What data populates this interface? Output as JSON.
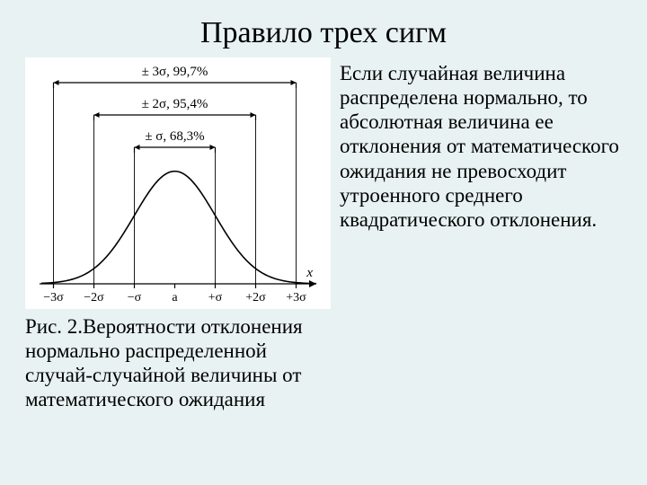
{
  "title": "Правило трех сигм",
  "body_text": "Если случайная величина распределена нормально, то абсолютная величина ее отклонения от математического ожидания не превосходит утроенного среднего квадратического отклонения.",
  "caption": "Рис. 2.Вероятности отклонения нормально распределенной случай-случайной величины от математического ожидания",
  "chart": {
    "type": "bell-curve",
    "background": "#ffffff",
    "stroke": "#000000",
    "stroke_width": 1.6,
    "axis_stroke_width": 1.2,
    "xlim": [
      -3.3,
      3.5
    ],
    "ylim": [
      0,
      0.42
    ],
    "mean_label": "a",
    "axis_label": "x",
    "xtick_labels": [
      "−3σ",
      "−2σ",
      "−σ",
      "a",
      "+σ",
      "+2σ",
      "+3σ"
    ],
    "interval_labels": [
      {
        "text": "± 3σ, 99,7%",
        "y_offset": 0,
        "span": 3
      },
      {
        "text": "± 2σ, 95,4%",
        "y_offset": 1,
        "span": 2
      },
      {
        "text": "± σ, 68,3%",
        "y_offset": 2,
        "span": 1
      }
    ],
    "label_fontsize": 15,
    "tick_fontsize": 14,
    "tick_len": 5,
    "interval_line_gap": 36
  }
}
